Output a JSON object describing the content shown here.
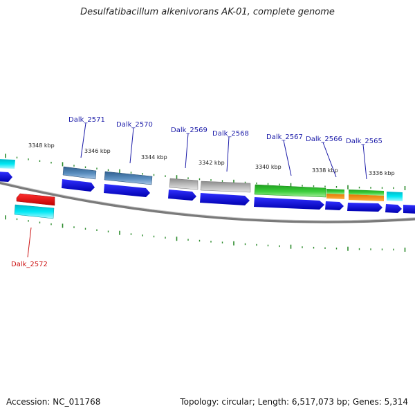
{
  "title": "Desulfatibacillum alkenivorans AK-01, complete genome",
  "footer": {
    "accession": "Accession: NC_011768",
    "topology": "Topology: circular; Length: 6,517,073 bp; Genes: 5,314"
  },
  "colors": {
    "cds": "#0000ee",
    "gene_label": "#1a1aa8",
    "highlight_label": "#cc1111",
    "backbone": "#808080",
    "ticks": "#2a8a2a",
    "kbp_text": "#222222"
  },
  "scale": {
    "unit": "kbp",
    "labels": [
      "3348 kbp",
      "3346 kbp",
      "3344 kbp",
      "3342 kbp",
      "3340 kbp",
      "3338 kbp",
      "3336 kbp"
    ]
  },
  "genes": [
    {
      "label": "Dalk_2572",
      "highlight": true,
      "feature_color": "red"
    },
    {
      "label": "Dalk_2571",
      "highlight": false,
      "feature_color": "steel-blue"
    },
    {
      "label": "Dalk_2570",
      "highlight": false,
      "feature_color": "steel-blue"
    },
    {
      "label": "Dalk_2569",
      "highlight": false,
      "feature_color": "gray"
    },
    {
      "label": "Dalk_2568",
      "highlight": false,
      "feature_color": "gray"
    },
    {
      "label": "Dalk_2567",
      "highlight": false,
      "feature_color": "green"
    },
    {
      "label": "Dalk_2566",
      "highlight": false,
      "feature_color": "green-orange"
    },
    {
      "label": "Dalk_2565",
      "highlight": false,
      "feature_color": "green-orange"
    }
  ]
}
